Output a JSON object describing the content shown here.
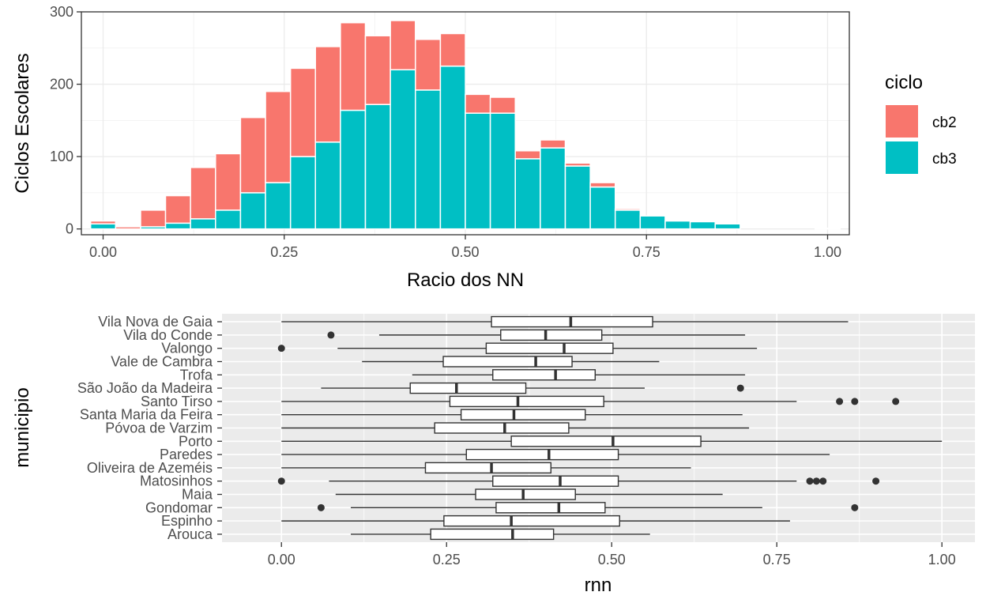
{
  "chart_data": [
    {
      "type": "bar",
      "stacked": true,
      "xlabel": "Racio dos NN",
      "ylabel": "Ciclos Escolares",
      "xlim": [
        -0.03,
        1.03
      ],
      "ylim": [
        -8,
        300
      ],
      "x_ticks": [
        {
          "value": 0.0,
          "label": "0.00"
        },
        {
          "value": 0.25,
          "label": "0.25"
        },
        {
          "value": 0.5,
          "label": "0.50"
        },
        {
          "value": 0.75,
          "label": "0.75"
        },
        {
          "value": 1.0,
          "label": "1.00"
        }
      ],
      "y_ticks": [
        {
          "value": 0,
          "label": "0"
        },
        {
          "value": 100,
          "label": "100"
        },
        {
          "value": 200,
          "label": "200"
        },
        {
          "value": 300,
          "label": "300"
        }
      ],
      "bin_width": 0.0345,
      "bin_centers": [
        0.0,
        0.0345,
        0.069,
        0.1034,
        0.1379,
        0.1724,
        0.2069,
        0.2414,
        0.2759,
        0.3103,
        0.3448,
        0.3793,
        0.4138,
        0.4483,
        0.4828,
        0.5172,
        0.5517,
        0.5862,
        0.6207,
        0.6552,
        0.6897,
        0.7241,
        0.7586,
        0.7931,
        0.8276,
        0.8621,
        0.8966,
        0.931,
        0.9655,
        1.0
      ],
      "grid": true,
      "legend": {
        "title": "ciclo",
        "position": "right",
        "entries": [
          {
            "name": "cb2",
            "color": "#F8766D"
          },
          {
            "name": "cb3",
            "color": "#00BFC4"
          }
        ]
      },
      "series": [
        {
          "name": "cb3",
          "color": "#00BFC4",
          "values": [
            7,
            0,
            3,
            8,
            14,
            26,
            50,
            64,
            100,
            120,
            164,
            172,
            220,
            192,
            225,
            160,
            160,
            97,
            112,
            87,
            58,
            26,
            18,
            11,
            10,
            7,
            0,
            0,
            0,
            0
          ]
        },
        {
          "name": "cb2",
          "color": "#F8766D",
          "values": [
            4,
            3,
            23,
            38,
            71,
            78,
            104,
            126,
            122,
            132,
            121,
            95,
            68,
            70,
            45,
            26,
            22,
            11,
            11,
            4,
            6,
            2,
            0,
            0,
            0,
            0,
            0,
            0,
            0,
            1
          ]
        }
      ]
    },
    {
      "type": "boxplot",
      "orientation": "horizontal",
      "xlabel": "rnn",
      "ylabel": "municipio",
      "xlim": [
        -0.09,
        1.05
      ],
      "x_ticks": [
        {
          "value": 0.0,
          "label": "0.00"
        },
        {
          "value": 0.25,
          "label": "0.25"
        },
        {
          "value": 0.5,
          "label": "0.50"
        },
        {
          "value": 0.75,
          "label": "0.75"
        },
        {
          "value": 1.0,
          "label": "1.00"
        }
      ],
      "grid": true,
      "categories": [
        "Arouca",
        "Espinho",
        "Gondomar",
        "Maia",
        "Matosinhos",
        "Oliveira de Azeméis",
        "Paredes",
        "Porto",
        "Póvoa de Varzim",
        "Santa Maria da Feira",
        "Santo Tirso",
        "São João da Madeira",
        "Trofa",
        "Vale de Cambra",
        "Valongo",
        "Vila do Conde",
        "Vila Nova de Gaia"
      ],
      "boxes": [
        {
          "label": "Arouca",
          "min": 0.105,
          "q1": 0.226,
          "median": 0.35,
          "q3": 0.412,
          "max": 0.558,
          "outliers": []
        },
        {
          "label": "Espinho",
          "min": 0.0,
          "q1": 0.246,
          "median": 0.348,
          "q3": 0.512,
          "max": 0.77,
          "outliers": []
        },
        {
          "label": "Gondomar",
          "min": 0.105,
          "q1": 0.325,
          "median": 0.42,
          "q3": 0.49,
          "max": 0.728,
          "outliers": [
            0.06,
            0.868
          ]
        },
        {
          "label": "Maia",
          "min": 0.082,
          "q1": 0.294,
          "median": 0.366,
          "q3": 0.445,
          "max": 0.668,
          "outliers": []
        },
        {
          "label": "Matosinhos",
          "min": 0.072,
          "q1": 0.32,
          "median": 0.422,
          "q3": 0.51,
          "max": 0.78,
          "outliers": [
            0.0,
            0.8,
            0.81,
            0.82,
            0.9
          ]
        },
        {
          "label": "Oliveira de Azeméis",
          "min": 0.0,
          "q1": 0.218,
          "median": 0.318,
          "q3": 0.408,
          "max": 0.62,
          "outliers": []
        },
        {
          "label": "Paredes",
          "min": 0.0,
          "q1": 0.28,
          "median": 0.405,
          "q3": 0.51,
          "max": 0.83,
          "outliers": []
        },
        {
          "label": "Porto",
          "min": 0.0,
          "q1": 0.348,
          "median": 0.502,
          "q3": 0.635,
          "max": 1.0,
          "outliers": []
        },
        {
          "label": "Póvoa de Varzim",
          "min": 0.0,
          "q1": 0.232,
          "median": 0.338,
          "q3": 0.435,
          "max": 0.708,
          "outliers": []
        },
        {
          "label": "Santa Maria da Feira",
          "min": 0.0,
          "q1": 0.272,
          "median": 0.352,
          "q3": 0.46,
          "max": 0.698,
          "outliers": []
        },
        {
          "label": "Santo Tirso",
          "min": 0.0,
          "q1": 0.255,
          "median": 0.358,
          "q3": 0.488,
          "max": 0.78,
          "outliers": [
            0.845,
            0.868,
            0.93
          ]
        },
        {
          "label": "São João da Madeira",
          "min": 0.06,
          "q1": 0.195,
          "median": 0.265,
          "q3": 0.37,
          "max": 0.55,
          "outliers": [
            0.695
          ]
        },
        {
          "label": "Trofa",
          "min": 0.198,
          "q1": 0.32,
          "median": 0.415,
          "q3": 0.475,
          "max": 0.702,
          "outliers": []
        },
        {
          "label": "Vale de Cambra",
          "min": 0.122,
          "q1": 0.245,
          "median": 0.385,
          "q3": 0.44,
          "max": 0.572,
          "outliers": []
        },
        {
          "label": "Valongo",
          "min": 0.085,
          "q1": 0.31,
          "median": 0.428,
          "q3": 0.502,
          "max": 0.72,
          "outliers": [
            0.0
          ]
        },
        {
          "label": "Vila do Conde",
          "min": 0.148,
          "q1": 0.332,
          "median": 0.4,
          "q3": 0.485,
          "max": 0.702,
          "outliers": [
            0.075
          ]
        },
        {
          "label": "Vila Nova de Gaia",
          "min": 0.0,
          "q1": 0.318,
          "median": 0.438,
          "q3": 0.562,
          "max": 0.858,
          "outliers": []
        }
      ]
    }
  ]
}
